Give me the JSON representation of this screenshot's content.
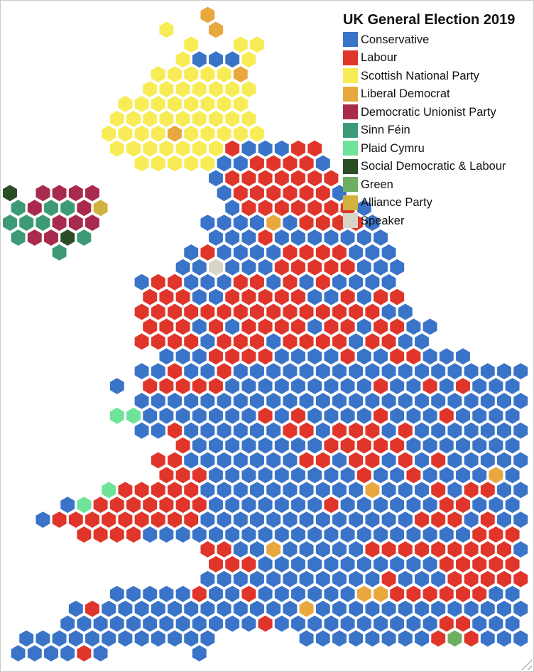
{
  "legend": {
    "title": "UK General Election 2019",
    "items": [
      {
        "party": "Conservative",
        "color": "#3a74c8"
      },
      {
        "party": "Labour",
        "color": "#e0352a"
      },
      {
        "party": "Scottish National Party",
        "color": "#f7ec55"
      },
      {
        "party": "Liberal Democrat",
        "color": "#e8a83e"
      },
      {
        "party": "Democratic Unionist Party",
        "color": "#a82a4c"
      },
      {
        "party": "Sinn Féin",
        "color": "#3d9a76"
      },
      {
        "party": "Plaid Cymru",
        "color": "#6fe39a"
      },
      {
        "party": "Social Democratic & Labour",
        "color": "#2b4d25"
      },
      {
        "party": "Green",
        "color": "#6eae62"
      },
      {
        "party": "Alliance Party",
        "color": "#d2b23e"
      },
      {
        "party": "Speaker",
        "color": "#d8d4c6"
      }
    ]
  },
  "party_codes": {
    "C": "Conservative",
    "L": "Labour",
    "S": "Scottish National Party",
    "D": "Liberal Democrat",
    "U": "Democratic Unionist Party",
    "F": "Sinn Féin",
    "P": "Plaid Cymru",
    "X": "Social Democratic & Labour",
    "G": "Green",
    "A": "Alliance Party",
    "K": "Speaker"
  },
  "map_rows": [
    "............D.......................",
    ".........S..D.......................",
    "...........S..SS....................",
    "..........SCCCS.....................",
    ".........SSSSSD.....................",
    "........SSSSSSS.....................",
    ".......SSSSSSSS.....................",
    "......SSSSSSSSS.....................",
    "......SSSSDSSSSS....................",
    "......SSSSSSSLCCCLL.................",
    "........SSSSSCCLLLLC................",
    "............CLLLLLLL................",
    "X.UUUU.......CLLLLLLC...............",
    "FUFFUA.......CLLLLLLLC..............",
    "FFFUUU......CCCCDCLLLLC.............",
    "FUUXF.......CCCLCCCCCCC.............",
    "...F.......CLCCCCLLLLCCC............",
    "..........CCKCCCLLLLLCCC............",
    "........CLLCCCLLCLCLCCCC............",
    "........LLLCCLLLLLCCLCLL............",
    "........LLLLLLLLLLLLLLLCC...........",
    "........LLLCLCLLLLCLLCLLCC..........",
    "........LLLLCLLLCLLLLCLLCC..........",
    ".........CCCLLLLCCCCLCCLLCCC........",
    "........CCLCCLCCCCCCCCCCCCCCCCCCC...",
    "......C.LLLLLCCCCCCCCCLCCLCLCCCCCCC.",
    "........CCCCCCCCCCCCCCCCCCCCCCCCCCLC",
    "......PPCCCCCCCLCLCCCCLCCCLCCCCCCCCC",
    "........CCLCCCCCCLLCLLLCLCCCCCCCCCCC",
    "..........LCCCCCCCCLLLLLCCCCCCCCCCCC",
    ".........LLCCCCCCCLLCLLCLCLCCCCCCCCC",
    ".........LLLCCCCCCCCCLCCLCCCCDCCCCCC",
    "......PLLLLLCCCCCCCCCCDCCCLCLLCCCCCC",
    "...CPLLLLLLLCCCCCCCLCCCCCCLLCCCCCCCC",
    "..CLLLLLLLLLCCCCCCCCCCCCCLLLCLCCCCCC",
    "....LLLLCCCCCCCCCCCCCCCCCCCCLLLCCCCC",
    "............LLCCDCCCCCLLLLLLLLLCCCCC",
    "............LLLCCCCCCCCCCCLLLLLLCCCCCC",
    "............CCCCCCCCCCCLCCCLLLLLCCCCCC",
    "......CCCCCLCCLCCCCCCDDLLLLLLCCCCCCLCC",
    "....CLCCCCCCCCCCCCDCCCCCCCCCCCCCCCCCCC",
    "...CCCCCCCCCCCCLCCCCCCCCCCLLCCCCCCCCCC",
    ".CCCCCCCCCCCC.....CCCCCCCCLGLCCCCCC...",
    "CCCCLC.....C........................."
  ]
}
